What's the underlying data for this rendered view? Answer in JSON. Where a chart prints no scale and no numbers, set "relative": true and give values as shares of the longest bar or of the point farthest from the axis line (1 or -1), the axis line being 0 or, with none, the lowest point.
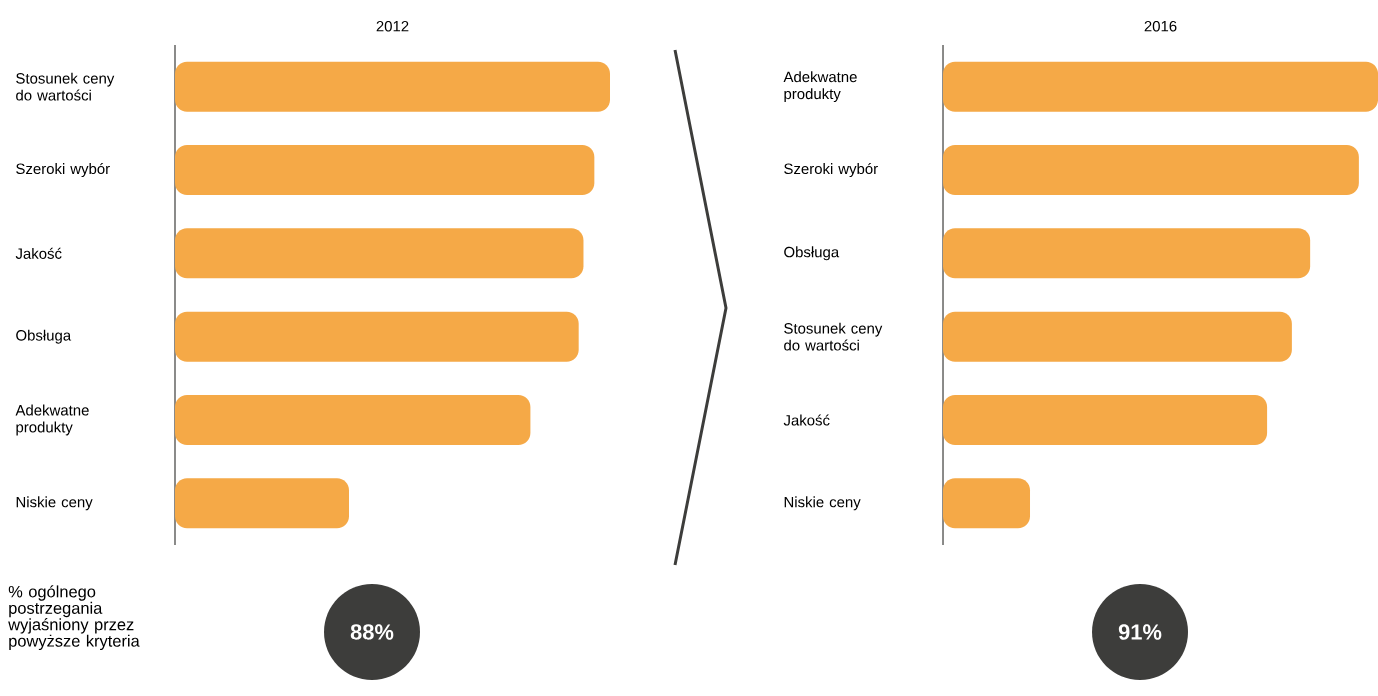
{
  "chart_data": [
    {
      "type": "bar",
      "orientation": "horizontal",
      "relative": true,
      "title": "2012",
      "color": "#f5a947",
      "categories": [
        "Stosunek ceny do wartości",
        "Szeroki wybór",
        "Jakość",
        "Obsługa",
        "Adekwatne produkty",
        "Niskie ceny"
      ],
      "values": [
        1,
        0.964,
        0.939,
        0.928,
        0.817,
        0.4
      ],
      "annotations": [
        "% ogólnego postrzegania wyjaśniony przez powyższe kryteria",
        "88%"
      ]
    },
    {
      "type": "bar",
      "orientation": "horizontal",
      "relative": true,
      "title": "2016",
      "color": "#f5a947",
      "categories": [
        "Adekwatne produkty",
        "Szeroki wybór",
        "Obsługa",
        "Stosunek ceny do wartości",
        "Jakość",
        "Niskie ceny"
      ],
      "values": [
        1,
        0.956,
        0.844,
        0.802,
        0.745,
        0.2
      ],
      "annotations": [
        "91%"
      ]
    }
  ]
}
